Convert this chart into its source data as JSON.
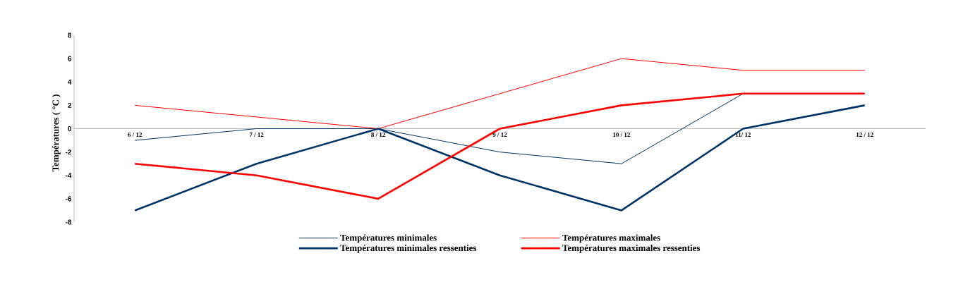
{
  "chart_data": {
    "type": "line",
    "ylabel": "Températures ( °C )",
    "categories": [
      "6 / 12",
      "7 / 12",
      "8 / 12",
      "9 / 12",
      "10 / 12",
      "11/ 12",
      "12 / 12"
    ],
    "series": [
      {
        "name": "Températures minimales",
        "color": "#003366",
        "values": [
          -1,
          0,
          0,
          -2,
          -3,
          3,
          null
        ]
      },
      {
        "name": "Températures maximales",
        "color": "#ff0000",
        "values": [
          2,
          1,
          0,
          3,
          6,
          5,
          5
        ]
      },
      {
        "name": "Températures minimales ressenties",
        "color": "#003366",
        "values": [
          -7,
          -3,
          0,
          -4,
          -7,
          0,
          2
        ]
      },
      {
        "name": "Températures maximales ressenties",
        "color": "#ff0000",
        "values": [
          -3,
          -4,
          -6,
          0,
          2,
          3,
          3
        ]
      }
    ],
    "ylim": [
      -8,
      8
    ],
    "yticks": [
      -8,
      -6,
      -4,
      -2,
      0,
      2,
      4,
      6,
      8
    ],
    "legend": "bottom"
  }
}
